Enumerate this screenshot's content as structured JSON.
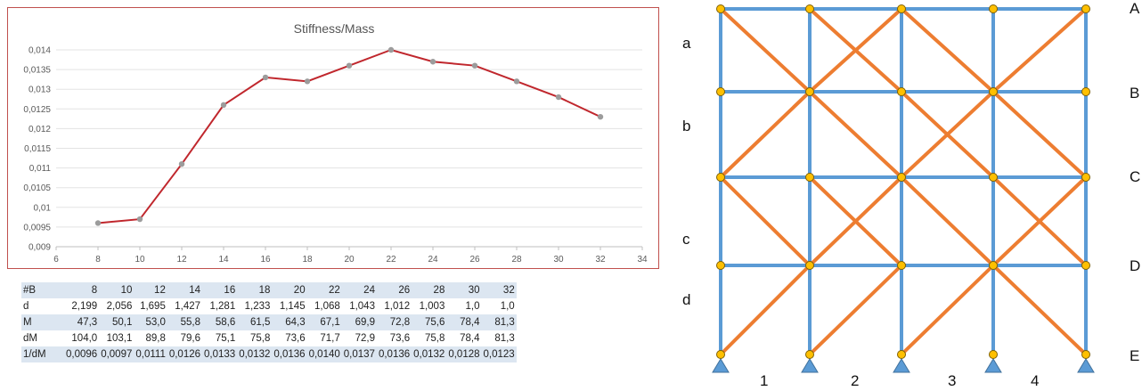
{
  "chart_data": {
    "type": "line",
    "title": "Stiffness/Mass",
    "x": [
      8,
      10,
      12,
      14,
      16,
      18,
      20,
      22,
      24,
      26,
      28,
      30,
      32
    ],
    "series": [
      {
        "values": [
          0.0096,
          0.0097,
          0.0111,
          0.0126,
          0.0133,
          0.0132,
          0.0136,
          0.014,
          0.0137,
          0.0136,
          0.0132,
          0.0128,
          0.0123
        ]
      }
    ],
    "xlim": [
      6,
      34
    ],
    "ylim": [
      0.009,
      0.014
    ],
    "x_ticks": [
      "6",
      "8",
      "10",
      "12",
      "14",
      "16",
      "18",
      "20",
      "22",
      "24",
      "26",
      "28",
      "30",
      "32",
      "34"
    ],
    "y_ticks": [
      "0,009",
      "0,0095",
      "0,01",
      "0,0105",
      "0,011",
      "0,0115",
      "0,012",
      "0,0125",
      "0,013",
      "0,0135",
      "0,014"
    ],
    "grid": true,
    "line_color": "#c0272d",
    "marker_color": "#9c9c9c"
  },
  "table": {
    "rows": [
      [
        "#B",
        "8",
        "10",
        "12",
        "14",
        "16",
        "18",
        "20",
        "22",
        "24",
        "26",
        "28",
        "30",
        "32"
      ],
      [
        "d",
        "2,199",
        "2,056",
        "1,695",
        "1,427",
        "1,281",
        "1,233",
        "1,145",
        "1,068",
        "1,043",
        "1,012",
        "1,003",
        "1,0",
        "1,0"
      ],
      [
        "M",
        "47,3",
        "50,1",
        "53,0",
        "55,8",
        "58,6",
        "61,5",
        "64,3",
        "67,1",
        "69,9",
        "72,8",
        "75,6",
        "78,4",
        "81,3"
      ],
      [
        "dM",
        "104,0",
        "103,1",
        "89,8",
        "79,6",
        "75,1",
        "75,8",
        "73,6",
        "71,7",
        "72,9",
        "73,6",
        "75,8",
        "78,4",
        "81,3"
      ],
      [
        "1/dM",
        "0,0096",
        "0,0097",
        "0,0111",
        "0,0126",
        "0,0133",
        "0,0132",
        "0,0136",
        "0,0140",
        "0,0137",
        "0,0136",
        "0,0132",
        "0,0128",
        "0,0123"
      ]
    ]
  },
  "frame": {
    "row_labels_left": [
      "a",
      "b",
      "c",
      "d"
    ],
    "row_labels_right": [
      "A",
      "B",
      "C",
      "D",
      "E"
    ],
    "column_labels": [
      "1",
      "2",
      "3",
      "4"
    ],
    "member_color": "#5b9bd5",
    "brace_color": "#ed7d31",
    "node_color": "#ffc000",
    "support_color": "#5b9bd5"
  }
}
